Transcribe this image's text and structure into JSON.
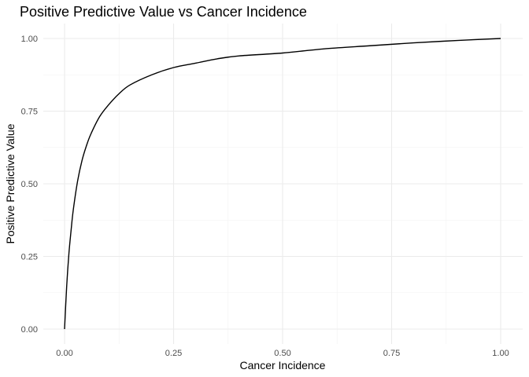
{
  "chart_data": {
    "type": "line",
    "title": "Positive Predictive Value vs Cancer Incidence",
    "xlabel": "Cancer Incidence",
    "ylabel": "Positive Predictive Value",
    "xlim": [
      0,
      1
    ],
    "ylim": [
      0,
      1
    ],
    "x_ticks": [
      0,
      0.25,
      0.5,
      0.75,
      1
    ],
    "x_tick_labels": [
      "0.00",
      "0.25",
      "0.50",
      "0.75",
      "1.00"
    ],
    "y_ticks": [
      0,
      0.25,
      0.5,
      0.75,
      1
    ],
    "y_tick_labels": [
      "0.00",
      "0.25",
      "0.50",
      "0.75",
      "1.00"
    ],
    "grid": true,
    "legend": "none",
    "line_color": "#000000",
    "series": [
      {
        "x": [
          0,
          0.005,
          0.01,
          0.015,
          0.02,
          0.03,
          0.04,
          0.05,
          0.06,
          0.08,
          0.1,
          0.125,
          0.15,
          0.2,
          0.25,
          0.3,
          0.35,
          0.4,
          0.5,
          0.6,
          0.7,
          0.8,
          0.9,
          1.0
        ],
        "values": [
          0,
          0.15,
          0.26,
          0.34,
          0.41,
          0.51,
          0.58,
          0.63,
          0.67,
          0.73,
          0.77,
          0.81,
          0.84,
          0.875,
          0.9,
          0.915,
          0.93,
          0.94,
          0.95,
          0.965,
          0.975,
          0.985,
          0.993,
          1.0
        ]
      }
    ]
  }
}
